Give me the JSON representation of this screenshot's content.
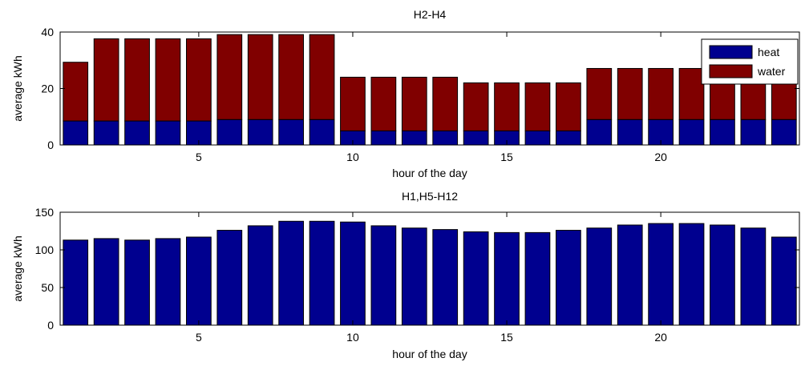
{
  "colors": {
    "heat": "#00008f",
    "water": "#800000",
    "axes": "#000000",
    "background": "#ffffff"
  },
  "chart_data": [
    {
      "type": "bar",
      "stacked": true,
      "title": "H2-H4",
      "xlabel": "hour of the day",
      "ylabel": "average kWh",
      "xlim": [
        0.5,
        24.5
      ],
      "ylim": [
        0,
        40
      ],
      "xticks": [
        5,
        10,
        15,
        20
      ],
      "yticks": [
        0,
        20,
        40
      ],
      "legend": {
        "placement": "top-right"
      },
      "x": [
        1,
        2,
        3,
        4,
        5,
        6,
        7,
        8,
        9,
        10,
        11,
        12,
        13,
        14,
        15,
        16,
        17,
        18,
        19,
        20,
        21,
        22,
        23,
        24
      ],
      "series": [
        {
          "name": "heat",
          "color": "#00008f",
          "values": [
            8.5,
            8.5,
            8.5,
            8.5,
            8.5,
            9,
            9,
            9,
            9,
            5,
            5,
            5,
            5,
            5,
            5,
            5,
            5,
            9,
            9,
            9,
            9,
            9,
            9,
            9
          ]
        },
        {
          "name": "water",
          "color": "#800000",
          "values": [
            20.8,
            29.1,
            29.1,
            29.1,
            29.1,
            30.1,
            30.1,
            30.1,
            30.1,
            19,
            19,
            19,
            19,
            17,
            17,
            17,
            17,
            18.1,
            18.1,
            18.1,
            18.1,
            18.1,
            18.1,
            18.1
          ]
        }
      ]
    },
    {
      "type": "bar",
      "title": "H1,H5-H12",
      "xlabel": "hour of the day",
      "ylabel": "average kWh",
      "xlim": [
        0.5,
        24.5
      ],
      "ylim": [
        0,
        150
      ],
      "xticks": [
        5,
        10,
        15,
        20
      ],
      "yticks": [
        0,
        50,
        100,
        150
      ],
      "x": [
        1,
        2,
        3,
        4,
        5,
        6,
        7,
        8,
        9,
        10,
        11,
        12,
        13,
        14,
        15,
        16,
        17,
        18,
        19,
        20,
        21,
        22,
        23,
        24
      ],
      "series": [
        {
          "color": "#00008f",
          "values": [
            113,
            115,
            113,
            115,
            117,
            126,
            132,
            138,
            138,
            137,
            132,
            129,
            127,
            124,
            123,
            123,
            126,
            129,
            133,
            135,
            135,
            133,
            129,
            117
          ]
        }
      ]
    }
  ]
}
